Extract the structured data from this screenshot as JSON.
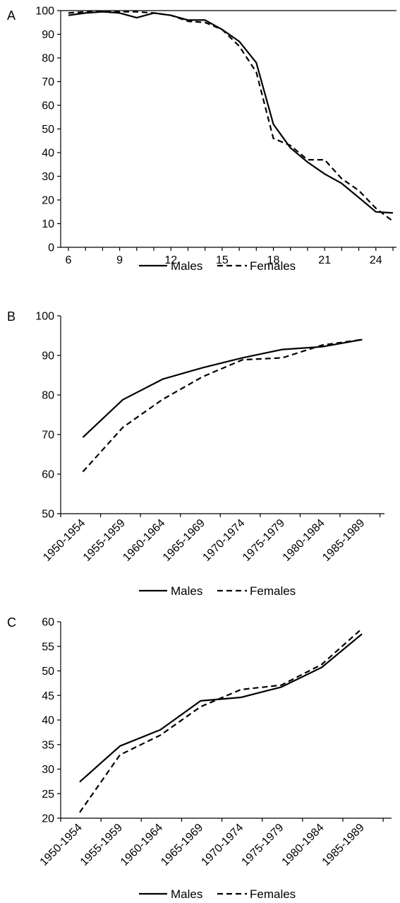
{
  "chart_data": [
    {
      "panel_label": "A",
      "type": "line",
      "x_type": "numeric",
      "xlim": [
        6,
        25
      ],
      "x_ticks": [
        6,
        9,
        12,
        15,
        18,
        21,
        24
      ],
      "ylim": [
        0,
        100
      ],
      "y_ticks": [
        0,
        10,
        20,
        30,
        40,
        50,
        60,
        70,
        80,
        90,
        100
      ],
      "x": [
        6,
        7,
        8,
        9,
        10,
        11,
        12,
        13,
        14,
        15,
        16,
        17,
        18,
        19,
        20,
        21,
        22,
        23,
        24,
        25
      ],
      "series": [
        {
          "name": "Males",
          "dash": "solid",
          "values": [
            98,
            99,
            99.5,
            99,
            97,
            99,
            98,
            96,
            96,
            92,
            87,
            78,
            52,
            42,
            36,
            31,
            27,
            21,
            15,
            14.5
          ]
        },
        {
          "name": "Females",
          "dash": "dashed",
          "values": [
            99,
            99.5,
            99.5,
            99.5,
            99.5,
            99,
            98,
            95.5,
            95,
            92,
            85,
            74,
            46,
            43,
            37,
            37,
            29,
            24,
            16.5,
            11
          ]
        }
      ],
      "legend": {
        "position": "bottom",
        "entries": [
          "Males",
          "Females"
        ]
      },
      "grid": false
    },
    {
      "panel_label": "B",
      "type": "line",
      "x_type": "categorical",
      "categories": [
        "1950-1954",
        "1955-1959",
        "1960-1964",
        "1965-1969",
        "1970-1974",
        "1975-1979",
        "1980-1984",
        "1985-1989"
      ],
      "ylim": [
        50,
        100
      ],
      "y_ticks": [
        50,
        60,
        70,
        80,
        90,
        100
      ],
      "series": [
        {
          "name": "Males",
          "dash": "solid",
          "values": [
            69.3,
            78.8,
            84.0,
            86.9,
            89.4,
            91.5,
            92.2,
            94.0
          ]
        },
        {
          "name": "Females",
          "dash": "dashed",
          "values": [
            60.6,
            71.8,
            78.9,
            84.6,
            88.9,
            89.4,
            92.6,
            94.0
          ]
        }
      ],
      "legend": {
        "position": "bottom",
        "entries": [
          "Males",
          "Females"
        ]
      },
      "grid": false
    },
    {
      "panel_label": "C",
      "type": "line",
      "x_type": "categorical",
      "categories": [
        "1950-1954",
        "1955-1959",
        "1960-1964",
        "1965-1969",
        "1970-1974",
        "1975-1979",
        "1980-1984",
        "1985-1989"
      ],
      "ylim": [
        20,
        60
      ],
      "y_ticks": [
        20,
        25,
        30,
        35,
        40,
        45,
        50,
        55,
        60
      ],
      "series": [
        {
          "name": "Males",
          "dash": "solid",
          "values": [
            27.4,
            34.7,
            38.0,
            43.9,
            44.6,
            46.7,
            50.7,
            57.5
          ]
        },
        {
          "name": "Females",
          "dash": "dashed",
          "values": [
            21.2,
            32.9,
            36.9,
            42.7,
            46.2,
            47.1,
            51.3,
            58.6
          ]
        }
      ],
      "legend": {
        "position": "bottom",
        "entries": [
          "Males",
          "Females"
        ]
      },
      "grid": false
    }
  ]
}
